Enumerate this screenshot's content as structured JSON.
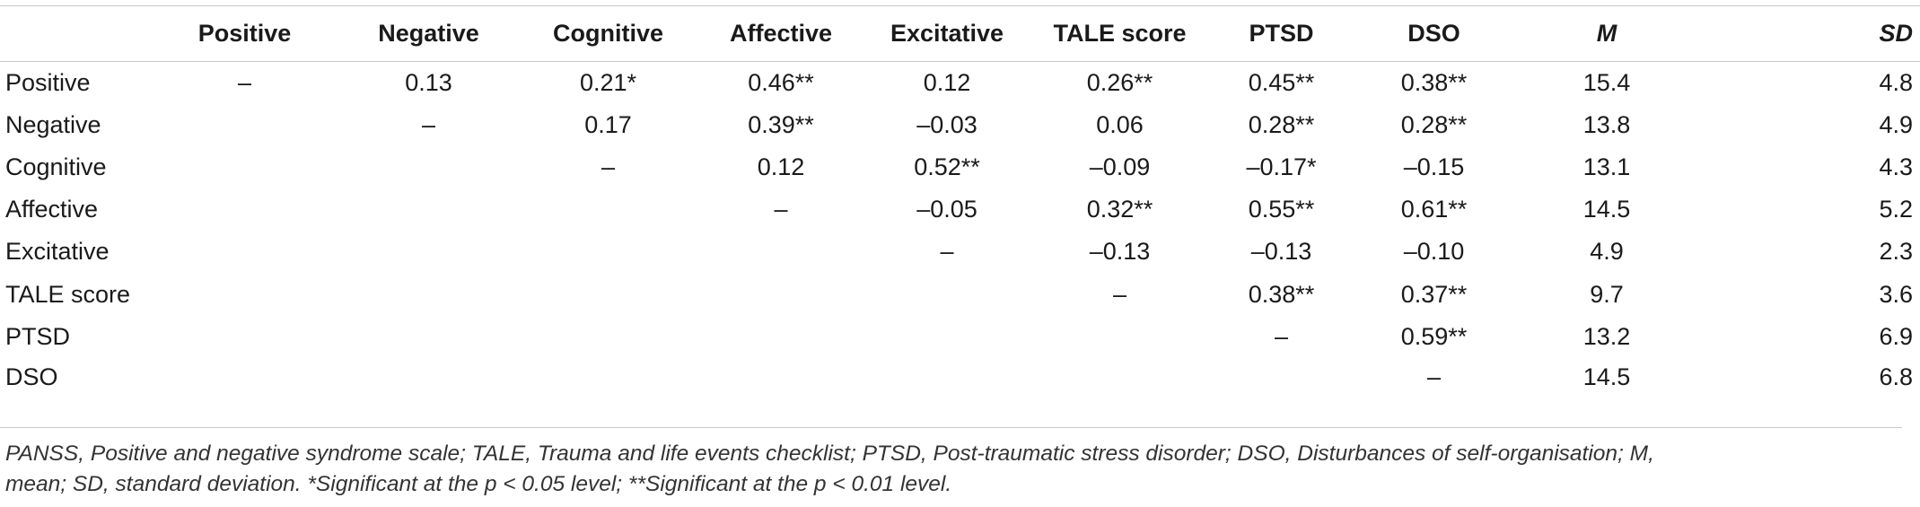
{
  "table": {
    "columns": [
      "",
      "Positive",
      "Negative",
      "Cognitive",
      "Affective",
      "Excitative",
      "TALE score",
      "PTSD",
      "DSO",
      "M",
      "SD"
    ],
    "rows": [
      {
        "label": "Positive",
        "cells": [
          "–",
          "0.13",
          "0.21*",
          "0.46**",
          "0.12",
          "0.26**",
          "0.45**",
          "0.38**",
          "15.4",
          "4.8"
        ]
      },
      {
        "label": "Negative",
        "cells": [
          "",
          "–",
          "0.17",
          "0.39**",
          "–0.03",
          "0.06",
          "0.28**",
          "0.28**",
          "13.8",
          "4.9"
        ]
      },
      {
        "label": "Cognitive",
        "cells": [
          "",
          "",
          "–",
          "0.12",
          "0.52**",
          "–0.09",
          "–0.17*",
          "–0.15",
          "13.1",
          "4.3"
        ]
      },
      {
        "label": "Affective",
        "cells": [
          "",
          "",
          "",
          "–",
          "–0.05",
          "0.32**",
          "0.55**",
          "0.61**",
          "14.5",
          "5.2"
        ]
      },
      {
        "label": "Excitative",
        "cells": [
          "",
          "",
          "",
          "",
          "–",
          "–0.13",
          "–0.13",
          "–0.10",
          "4.9",
          "2.3"
        ]
      },
      {
        "label": "TALE score",
        "cells": [
          "",
          "",
          "",
          "",
          "",
          "–",
          "0.38**",
          "0.37**",
          "9.7",
          "3.6"
        ]
      },
      {
        "label": "PTSD",
        "cells": [
          "",
          "",
          "",
          "",
          "",
          "",
          "–",
          "0.59**",
          "13.2",
          "6.9"
        ]
      },
      {
        "label": "DSO",
        "cells": [
          "",
          "",
          "",
          "",
          "",
          "",
          "",
          "–",
          "14.5",
          "6.8"
        ]
      }
    ]
  },
  "footnote": {
    "line1": "PANSS, Positive and negative syndrome scale; TALE, Trauma and life events checklist; PTSD, Post-traumatic stress disorder; DSO, Disturbances of self-organisation; M,",
    "line2": "mean; SD, standard deviation. *Significant at the p < 0.05 level; **Significant at the p < 0.01 level."
  }
}
